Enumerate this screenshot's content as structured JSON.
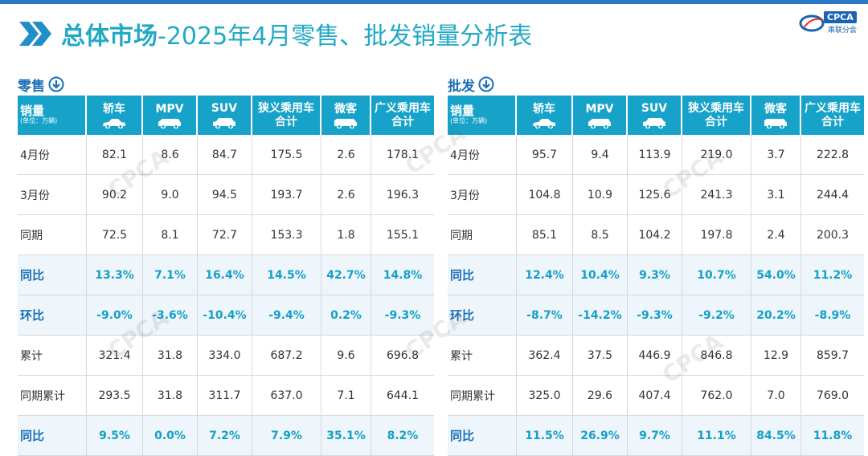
{
  "title_bold": "总体市场",
  "title_rest": "-2025年4月零售、批发销量分析表",
  "logo": {
    "text": "CPCA",
    "sub": "乘联分会"
  },
  "watermark": "CPCA",
  "colors": {
    "header": "#16a2c9",
    "title": "#21a9c5",
    "accent": "#14a0c8"
  },
  "headers": {
    "first": "销量",
    "unit": "(单位：万辆)",
    "columns": [
      "轿车",
      "MPV",
      "SUV",
      "狭义乘用车\n合计",
      "微客",
      "广义乘用车\n合计"
    ],
    "icons": [
      "sedan-icon",
      "mpv-icon",
      "suv-icon",
      "",
      "van-icon",
      ""
    ]
  },
  "retail": {
    "label": "零售",
    "rows": [
      {
        "label": "4月份",
        "highlight": false,
        "values": [
          "82.1",
          "8.6",
          "84.7",
          "175.5",
          "2.6",
          "178.1"
        ]
      },
      {
        "label": "3月份",
        "highlight": false,
        "values": [
          "90.2",
          "9.0",
          "94.5",
          "193.7",
          "2.6",
          "196.3"
        ]
      },
      {
        "label": "同期",
        "highlight": false,
        "values": [
          "72.5",
          "8.1",
          "72.7",
          "153.3",
          "1.8",
          "155.1"
        ]
      },
      {
        "label": "同比",
        "highlight": true,
        "values": [
          "13.3%",
          "7.1%",
          "16.4%",
          "14.5%",
          "42.7%",
          "14.8%"
        ]
      },
      {
        "label": "环比",
        "highlight": true,
        "values": [
          "-9.0%",
          "-3.6%",
          "-10.4%",
          "-9.4%",
          "0.2%",
          "-9.3%"
        ]
      },
      {
        "label": "累计",
        "highlight": false,
        "values": [
          "321.4",
          "31.8",
          "334.0",
          "687.2",
          "9.6",
          "696.8"
        ]
      },
      {
        "label": "同期累计",
        "highlight": false,
        "values": [
          "293.5",
          "31.8",
          "311.7",
          "637.0",
          "7.1",
          "644.1"
        ]
      },
      {
        "label": "同比",
        "highlight": true,
        "values": [
          "9.5%",
          "0.0%",
          "7.2%",
          "7.9%",
          "35.1%",
          "8.2%"
        ]
      }
    ]
  },
  "wholesale": {
    "label": "批发",
    "rows": [
      {
        "label": "4月份",
        "highlight": false,
        "values": [
          "95.7",
          "9.4",
          "113.9",
          "219.0",
          "3.7",
          "222.8"
        ]
      },
      {
        "label": "3月份",
        "highlight": false,
        "values": [
          "104.8",
          "10.9",
          "125.6",
          "241.3",
          "3.1",
          "244.4"
        ]
      },
      {
        "label": "同期",
        "highlight": false,
        "values": [
          "85.1",
          "8.5",
          "104.2",
          "197.8",
          "2.4",
          "200.3"
        ]
      },
      {
        "label": "同比",
        "highlight": true,
        "values": [
          "12.4%",
          "10.4%",
          "9.3%",
          "10.7%",
          "54.0%",
          "11.2%"
        ]
      },
      {
        "label": "环比",
        "highlight": true,
        "values": [
          "-8.7%",
          "-14.2%",
          "-9.3%",
          "-9.2%",
          "20.2%",
          "-8.9%"
        ]
      },
      {
        "label": "累计",
        "highlight": false,
        "values": [
          "362.4",
          "37.5",
          "446.9",
          "846.8",
          "12.9",
          "859.7"
        ]
      },
      {
        "label": "同期累计",
        "highlight": false,
        "values": [
          "325.0",
          "29.6",
          "407.4",
          "762.0",
          "7.0",
          "769.0"
        ]
      },
      {
        "label": "同比",
        "highlight": true,
        "values": [
          "11.5%",
          "26.9%",
          "9.7%",
          "11.1%",
          "84.5%",
          "11.8%"
        ]
      }
    ]
  }
}
